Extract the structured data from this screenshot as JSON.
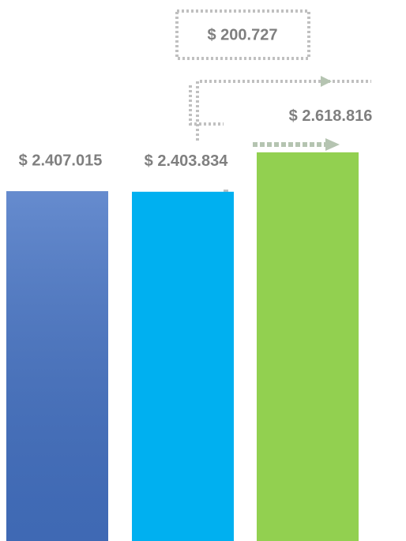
{
  "chart_data": {
    "type": "bar",
    "categories": [
      null,
      null,
      null
    ],
    "values": [
      2407015,
      2403834,
      2618816
    ],
    "value_labels": [
      "$ 2.407.015",
      "$ 2.403.834",
      "$ 2.618.816"
    ],
    "colors": [
      "#4472c4",
      "#00b0f0",
      "#92d050"
    ],
    "annotation": "$ 200.727",
    "ylim": [
      500000,
      2700000
    ]
  }
}
